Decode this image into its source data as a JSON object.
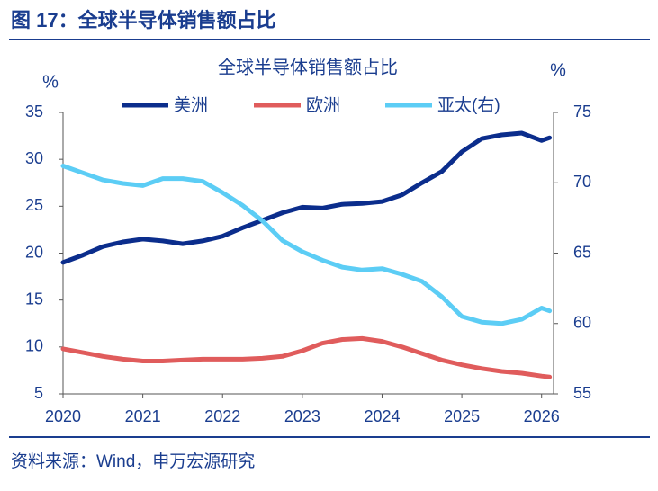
{
  "header": "图 17：全球半导体销售额占比",
  "source": "资料来源：Wind，申万宏源研究",
  "chart_data": {
    "type": "line",
    "title": "全球半导体销售额占比",
    "ylabel": "%",
    "y2label": "%",
    "xlim": [
      2020,
      2026.15
    ],
    "xticks": [
      2020,
      2021,
      2022,
      2023,
      2024,
      2025,
      2026
    ],
    "ylim": [
      5,
      35
    ],
    "yticks": [
      5,
      10,
      15,
      20,
      25,
      30,
      35
    ],
    "y2lim": [
      55,
      75
    ],
    "y2ticks": [
      55,
      60,
      65,
      70,
      75
    ],
    "x": [
      2020,
      2020.25,
      2020.5,
      2020.75,
      2021,
      2021.25,
      2021.5,
      2021.75,
      2022,
      2022.25,
      2022.5,
      2022.75,
      2023,
      2023.25,
      2023.5,
      2023.75,
      2024,
      2024.25,
      2024.5,
      2024.75,
      2025,
      2025.25,
      2025.5,
      2025.75,
      2026,
      2026.1
    ],
    "series": [
      {
        "name": "美洲",
        "color": "#0b2d8c",
        "values": [
          19.0,
          19.8,
          20.7,
          21.2,
          21.5,
          21.3,
          21.0,
          21.3,
          21.8,
          22.7,
          23.5,
          24.3,
          24.9,
          24.8,
          25.2,
          25.3,
          25.5,
          26.2,
          27.5,
          28.7,
          30.8,
          32.2,
          32.6,
          32.8,
          32.0,
          32.3
        ]
      },
      {
        "name": "欧洲",
        "color": "#e05c5c",
        "values": [
          9.8,
          9.4,
          9.0,
          8.7,
          8.5,
          8.5,
          8.6,
          8.7,
          8.7,
          8.7,
          8.8,
          9.0,
          9.6,
          10.4,
          10.8,
          10.9,
          10.6,
          10.0,
          9.3,
          8.6,
          8.1,
          7.7,
          7.4,
          7.2,
          6.9,
          6.8
        ]
      },
      {
        "name": "亚太(右)",
        "color": "#5ccdf5",
        "axis": "y2",
        "values": [
          71.2,
          70.7,
          70.2,
          69.95,
          69.8,
          70.3,
          70.3,
          70.1,
          69.3,
          68.4,
          67.3,
          65.9,
          65.1,
          64.5,
          64.0,
          63.8,
          63.9,
          63.5,
          63.0,
          61.9,
          60.5,
          60.1,
          60.0,
          60.3,
          61.1,
          60.9
        ]
      }
    ]
  }
}
